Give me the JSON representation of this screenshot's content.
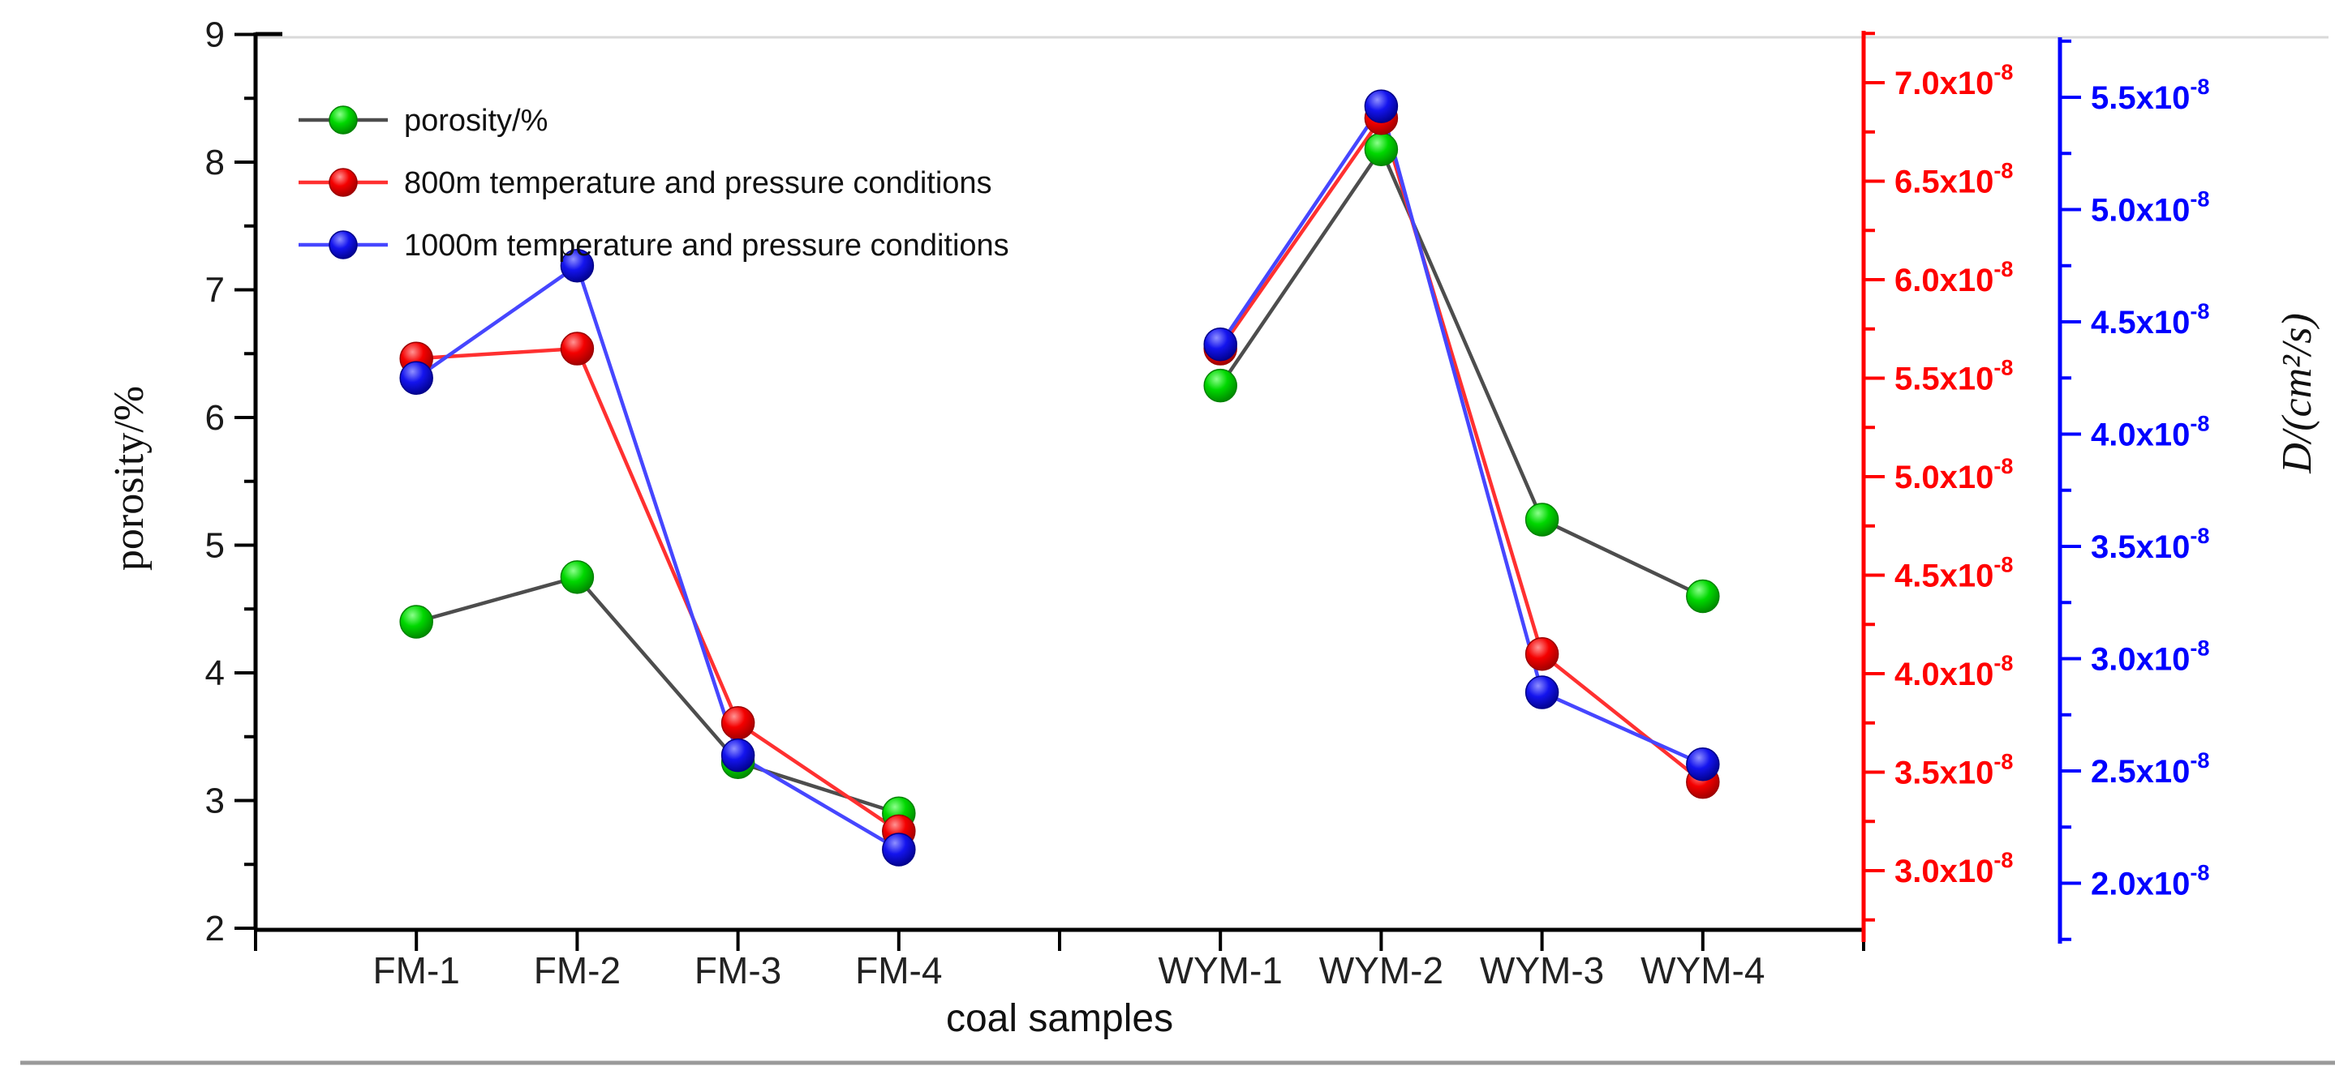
{
  "chart_data": {
    "type": "line",
    "title": "",
    "xlabel": "coal samples",
    "categories": [
      "FM-1",
      "FM-2",
      "FM-3",
      "FM-4",
      "WYM-1",
      "WYM-2",
      "WYM-3",
      "WYM-4"
    ],
    "category_positions": [
      1,
      2,
      3,
      4,
      6,
      7,
      8,
      9
    ],
    "x_range": [
      0,
      10
    ],
    "unlabeled_tick_positions": [
      0,
      5,
      10
    ],
    "axes": {
      "left": {
        "title": "porosity/%",
        "color": "#000000",
        "range": [
          2,
          9
        ],
        "tick_values": [
          2,
          3,
          4,
          5,
          6,
          7,
          8,
          9
        ],
        "tick_labels": [
          "2",
          "3",
          "4",
          "5",
          "6",
          "7",
          "8",
          "9"
        ],
        "minor_step": 0.5
      },
      "red": {
        "title": "",
        "color": "#ff0000",
        "range": [
          2.75,
          7.25
        ],
        "tick_values": [
          3.0,
          3.5,
          4.0,
          4.5,
          5.0,
          5.5,
          6.0,
          6.5,
          7.0
        ],
        "tick_labels": [
          "3.0",
          "3.5",
          "4.0",
          "4.5",
          "5.0",
          "5.5",
          "6.0",
          "6.5",
          "7.0"
        ],
        "label_suffix": "x10",
        "label_exponent": "-8",
        "minor_step": 0.25
      },
      "blue": {
        "title": "D/(cm²/s)",
        "color": "#0000ff",
        "range": [
          1.75,
          5.75
        ],
        "tick_values": [
          2.0,
          2.5,
          3.0,
          3.5,
          4.0,
          4.5,
          5.0,
          5.5
        ],
        "tick_labels": [
          "2.0",
          "2.5",
          "3.0",
          "3.5",
          "4.0",
          "4.5",
          "5.0",
          "5.5"
        ],
        "label_suffix": "x10",
        "label_exponent": "-8",
        "minor_step": 0.25
      }
    },
    "series": [
      {
        "name": "porosity/%",
        "axis": "left",
        "marker_color": "#00d800",
        "marker_highlight": "#8cff8c",
        "marker_edge": "#008200",
        "line_color": "#4d4d4d",
        "values": [
          4.4,
          4.75,
          3.3,
          2.9,
          6.25,
          8.1,
          5.2,
          4.6
        ]
      },
      {
        "name": "800m temperature and pressure conditions",
        "axis": "red",
        "marker_color": "#f40000",
        "marker_highlight": "#ff9494",
        "marker_edge": "#9c0000",
        "line_color": "#ff3030",
        "values": [
          5.6,
          5.65,
          3.75,
          3.2,
          5.65,
          6.82,
          4.1,
          3.45
        ]
      },
      {
        "name": "1000m temperature and pressure conditions",
        "axis": "blue",
        "marker_color": "#1414ee",
        "marker_highlight": "#9090ff",
        "marker_edge": "#000089",
        "line_color": "#4646ff",
        "values": [
          4.25,
          4.75,
          2.57,
          2.15,
          4.4,
          5.46,
          2.85,
          2.53
        ]
      }
    ],
    "legend": {
      "position": "top-left",
      "entries": [
        "porosity/%",
        "800m temperature and pressure conditions",
        "1000m temperature and pressure conditions"
      ]
    },
    "decorations": {
      "top_border_color": "#d9d9d9",
      "bottom_rule_color": "#9a9a9a"
    }
  }
}
